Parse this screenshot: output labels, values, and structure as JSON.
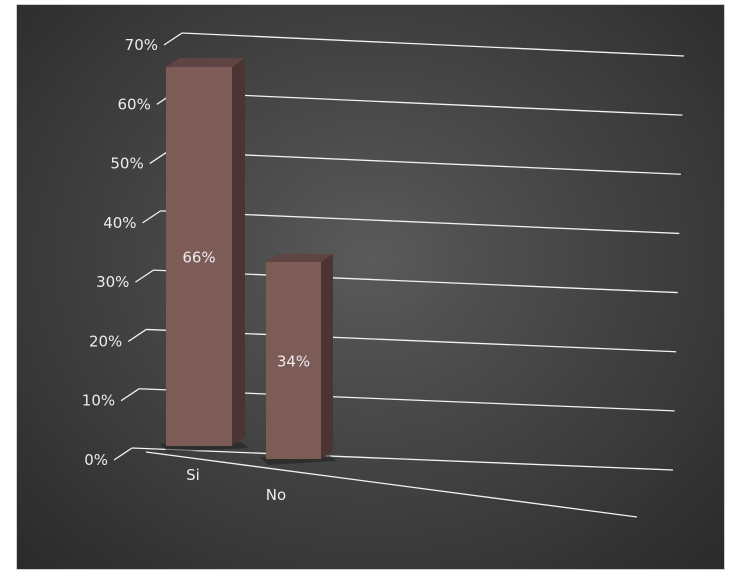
{
  "chart_data": {
    "type": "bar",
    "categories": [
      "Si",
      "No"
    ],
    "series": [
      {
        "values": [
          66,
          34
        ]
      }
    ],
    "data_labels": [
      "66%",
      "34%"
    ],
    "y_ticks": [
      "0%",
      "10%",
      "20%",
      "30%",
      "40%",
      "50%",
      "60%",
      "70%"
    ],
    "ylim": [
      0,
      70
    ],
    "grid": true,
    "style": "3d-perspective",
    "colors": {
      "bar": "#7d5c58",
      "bar_top": "#5e4442",
      "bar_side": "#4a3533",
      "grid": "#f2f2f2",
      "text": "#ececec",
      "background": "#3e3e3e"
    }
  }
}
